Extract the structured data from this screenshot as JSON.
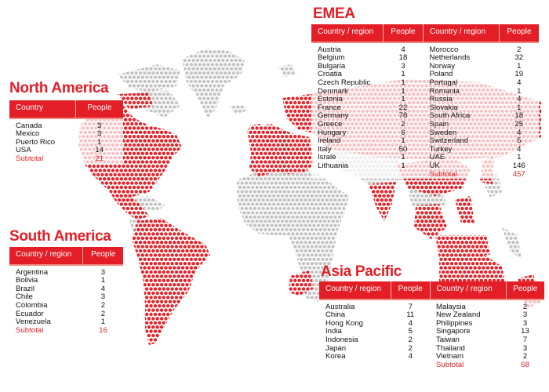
{
  "colors": {
    "accent": "#e31e26",
    "dot_grey": "#c4c4c4",
    "dot_red": "#e3262c",
    "dot_faded": "#f7c9bd"
  },
  "north_america": {
    "title": "North America",
    "headers": [
      "Country",
      "People"
    ],
    "rows": [
      [
        "Canada",
        "3"
      ],
      [
        "Mexico",
        "3"
      ],
      [
        "Puerto Rico",
        "1"
      ],
      [
        "USA",
        "14"
      ]
    ],
    "subtotal": {
      "label": "Subtotal",
      "value": "21"
    }
  },
  "south_america": {
    "title": "South America",
    "headers": [
      "Country / region",
      "People"
    ],
    "rows": [
      [
        "Argentina",
        "3"
      ],
      [
        "Bolivia",
        "1"
      ],
      [
        "Brazil",
        "4"
      ],
      [
        "Chile",
        "3"
      ],
      [
        "Colombia",
        "2"
      ],
      [
        "Ecuador",
        "2"
      ],
      [
        "Venezuela",
        "1"
      ]
    ],
    "subtotal": {
      "label": "Subtotal",
      "value": "16"
    }
  },
  "emea": {
    "title": "EMEA",
    "headers": [
      "Country / region",
      "People",
      "Country / region",
      "People"
    ],
    "left_rows": [
      [
        "Austria",
        "4"
      ],
      [
        "Belgium",
        "18"
      ],
      [
        "Bulgaria",
        "3"
      ],
      [
        "Croatia",
        "1"
      ],
      [
        "Czech Republic",
        "1"
      ],
      [
        "Denmark",
        "1"
      ],
      [
        "Estonia",
        "1"
      ],
      [
        "France",
        "22"
      ],
      [
        "Germany",
        "78"
      ],
      [
        "Greece",
        "2"
      ],
      [
        "Hungary",
        "6"
      ],
      [
        "Ireland",
        "1"
      ],
      [
        "Italy",
        "50"
      ],
      [
        "Israle",
        "1"
      ],
      [
        "Lithuania",
        "1"
      ]
    ],
    "right_rows": [
      [
        "Morocco",
        "2"
      ],
      [
        "Netherlands",
        "32"
      ],
      [
        "Norway",
        "1"
      ],
      [
        "Poland",
        "19"
      ],
      [
        "Portugal",
        "4"
      ],
      [
        "Romania",
        "1"
      ],
      [
        "Russia",
        "4"
      ],
      [
        "Slovakia",
        "1"
      ],
      [
        "South Africa",
        "18"
      ],
      [
        "Spain",
        "25"
      ],
      [
        "Sweden",
        "4"
      ],
      [
        "Switzerland",
        "5"
      ],
      [
        "Turkey",
        "4"
      ],
      [
        "UAE",
        "1"
      ],
      [
        "UK",
        "146"
      ]
    ],
    "subtotal": {
      "label": "Subtotal",
      "value": "457"
    }
  },
  "asia_pacific": {
    "title": "Asia Pacific",
    "headers": [
      "Country / region",
      "People",
      "Country / region",
      "People"
    ],
    "left_rows": [
      [
        "Australia",
        "7"
      ],
      [
        "China",
        "11"
      ],
      [
        "Hong Kong",
        "4"
      ],
      [
        "India",
        "5"
      ],
      [
        "Indonesia",
        "2"
      ],
      [
        "Japan",
        "2"
      ],
      [
        "Korea",
        "4"
      ]
    ],
    "right_rows": [
      [
        "Malaysia",
        "2"
      ],
      [
        "New Zealand",
        "3"
      ],
      [
        "Philippines",
        "3"
      ],
      [
        "Singapore",
        "13"
      ],
      [
        "Taiwan",
        "7"
      ],
      [
        "Thailand",
        "3"
      ],
      [
        "Vietnam",
        "2"
      ]
    ],
    "subtotal": {
      "label": "Subtotal",
      "value": "68"
    }
  }
}
